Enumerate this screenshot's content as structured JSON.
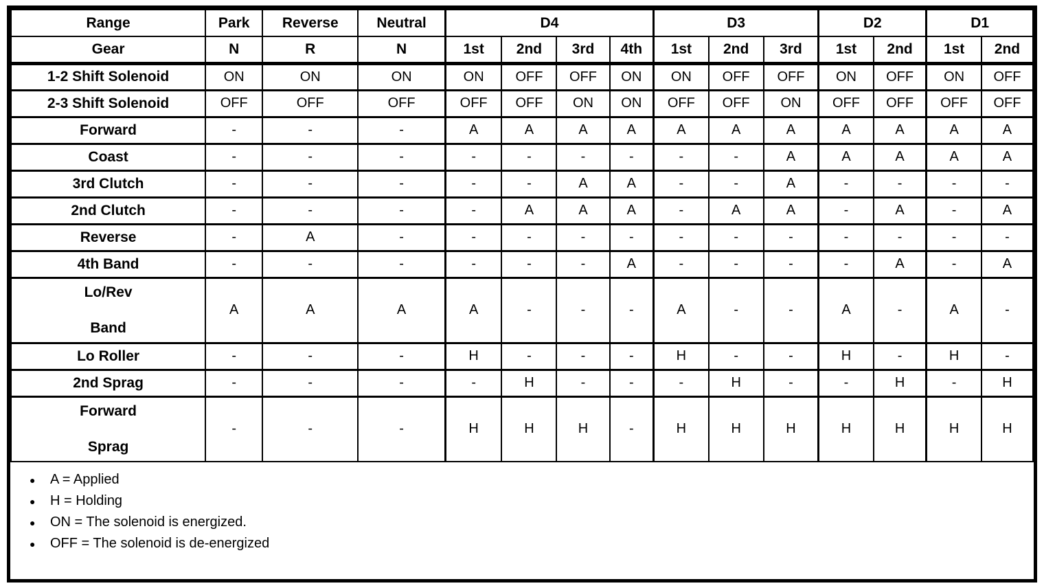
{
  "table": {
    "header": {
      "range_label": "Range",
      "gear_label": "Gear",
      "simple_ranges": [
        {
          "range": "Park",
          "gear": "N"
        },
        {
          "range": "Reverse",
          "gear": "R"
        },
        {
          "range": "Neutral",
          "gear": "N"
        }
      ],
      "drive_ranges": [
        {
          "range": "D4",
          "gears": [
            "1st",
            "2nd",
            "3rd",
            "4th"
          ]
        },
        {
          "range": "D3",
          "gears": [
            "1st",
            "2nd",
            "3rd"
          ]
        },
        {
          "range": "D2",
          "gears": [
            "1st",
            "2nd"
          ]
        },
        {
          "range": "D1",
          "gears": [
            "1st",
            "2nd"
          ]
        }
      ]
    },
    "rows": [
      {
        "label": "1-2 Shift Solenoid",
        "values": [
          "ON",
          "ON",
          "ON",
          "ON",
          "OFF",
          "OFF",
          "ON",
          "ON",
          "OFF",
          "OFF",
          "ON",
          "OFF",
          "ON",
          "OFF"
        ]
      },
      {
        "label": "2-3 Shift Solenoid",
        "values": [
          "OFF",
          "OFF",
          "OFF",
          "OFF",
          "OFF",
          "ON",
          "ON",
          "OFF",
          "OFF",
          "ON",
          "OFF",
          "OFF",
          "OFF",
          "OFF"
        ]
      },
      {
        "label": "Forward",
        "values": [
          "-",
          "-",
          "-",
          "A",
          "A",
          "A",
          "A",
          "A",
          "A",
          "A",
          "A",
          "A",
          "A",
          "A"
        ]
      },
      {
        "label": "Coast",
        "values": [
          "-",
          "-",
          "-",
          "-",
          "-",
          "-",
          "-",
          "-",
          "-",
          "A",
          "A",
          "A",
          "A",
          "A"
        ]
      },
      {
        "label": "3rd Clutch",
        "values": [
          "-",
          "-",
          "-",
          "-",
          "-",
          "A",
          "A",
          "-",
          "-",
          "A",
          "-",
          "-",
          "-",
          "-"
        ]
      },
      {
        "label": "2nd Clutch",
        "values": [
          "-",
          "-",
          "-",
          "-",
          "A",
          "A",
          "A",
          "-",
          "A",
          "A",
          "-",
          "A",
          "-",
          "A"
        ]
      },
      {
        "label": "Reverse",
        "values": [
          "-",
          "A",
          "-",
          "-",
          "-",
          "-",
          "-",
          "-",
          "-",
          "-",
          "-",
          "-",
          "-",
          "-"
        ]
      },
      {
        "label": "4th Band",
        "values": [
          "-",
          "-",
          "-",
          "-",
          "-",
          "-",
          "A",
          "-",
          "-",
          "-",
          "-",
          "A",
          "-",
          "A"
        ]
      },
      {
        "label": "Lo/Rev Band",
        "label_lines": [
          "Lo/Rev",
          "Band"
        ],
        "tall": true,
        "values": [
          "A",
          "A",
          "A",
          "A",
          "-",
          "-",
          "-",
          "A",
          "-",
          "-",
          "A",
          "-",
          "A",
          "-"
        ]
      },
      {
        "label": "Lo Roller",
        "values": [
          "-",
          "-",
          "-",
          "H",
          "-",
          "-",
          "-",
          "H",
          "-",
          "-",
          "H",
          "-",
          "H",
          "-"
        ]
      },
      {
        "label": "2nd Sprag",
        "values": [
          "-",
          "-",
          "-",
          "-",
          "H",
          "-",
          "-",
          "-",
          "H",
          "-",
          "-",
          "H",
          "-",
          "H"
        ]
      },
      {
        "label": "Forward Sprag",
        "label_lines": [
          "Forward",
          "Sprag"
        ],
        "tall": true,
        "values": [
          "-",
          "-",
          "-",
          "H",
          "H",
          "H",
          "-",
          "H",
          "H",
          "H",
          "H",
          "H",
          "H",
          "H"
        ]
      }
    ]
  },
  "legend": {
    "bullet_glyph": "●",
    "items": [
      "A = Applied",
      "H = Holding",
      "ON = The solenoid is energized.",
      "OFF = The solenoid is de-energized"
    ]
  },
  "colors": {
    "ink": "#000000",
    "paper": "#ffffff"
  }
}
